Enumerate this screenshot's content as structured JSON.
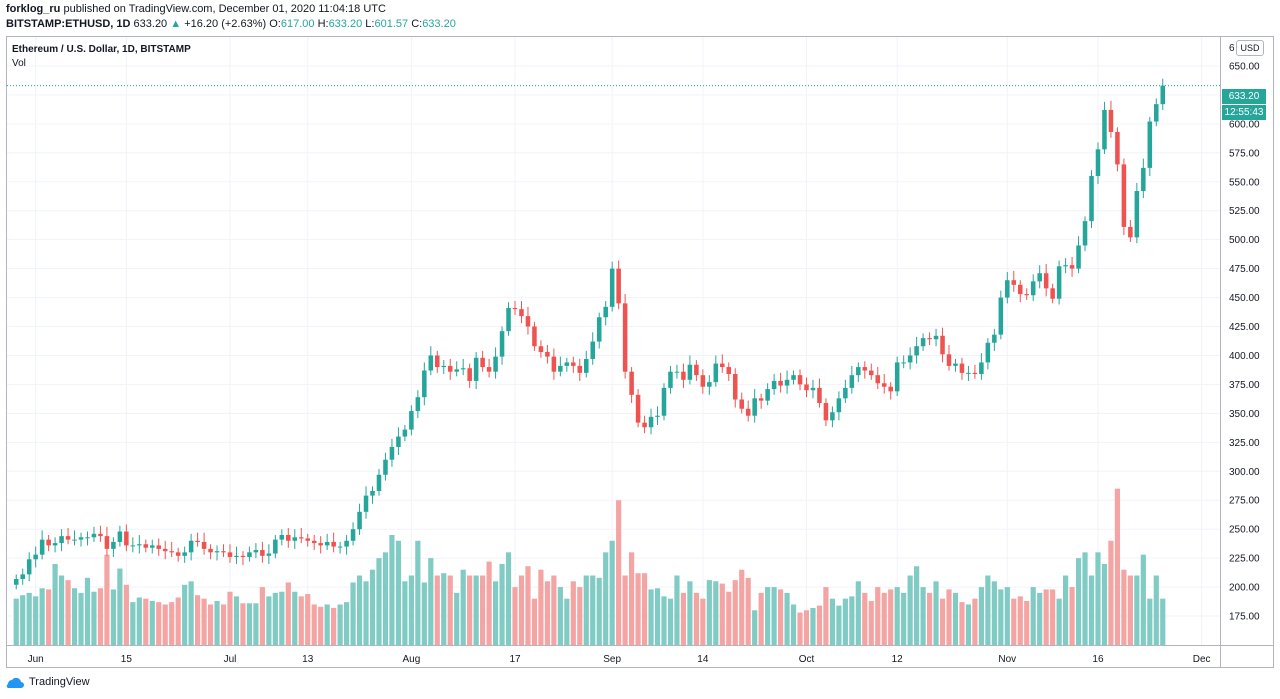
{
  "header": {
    "publisher": "forklog_ru",
    "published_text": "published on TradingView.com, December 01, 2020 11:04:18 UTC",
    "symbol_line": "BITSTAMP:ETHUSD, 1D",
    "last": "633.20",
    "change_arrow": "▲",
    "change": "+16.20 (+2.63%)",
    "o_label": "O:",
    "o_value": "617.00",
    "h_label": "H:",
    "h_value": "633.20",
    "l_label": "L:",
    "l_value": "601.57",
    "c_label": "C:",
    "c_value": "633.20"
  },
  "legend": {
    "title": "Ethereum / U.S. Dollar, 1D, BITSTAMP",
    "volume_label": "Vol"
  },
  "currency_button": "USD",
  "price_tag": "633.20",
  "countdown_tag": "12:55:43",
  "footer": {
    "brand": "TradingView"
  },
  "colors": {
    "up": "#26a69a",
    "down": "#ef5350",
    "up_vol": "#80cbc4",
    "down_vol": "#f4a4a2",
    "grid": "#f0f3fa"
  },
  "chart_data": {
    "type": "candlestick",
    "title": "Ethereum / U.S. Dollar, 1D, BITSTAMP",
    "yaxis": {
      "min": 150,
      "max": 675,
      "ticks": [
        175,
        200,
        225,
        250,
        275,
        300,
        325,
        350,
        375,
        400,
        425,
        450,
        475,
        500,
        525,
        550,
        575,
        600,
        625,
        650
      ],
      "top_partial_label": "6"
    },
    "xaxis_labels": [
      "Jun",
      "15",
      "Jul",
      "13",
      "Aug",
      "17",
      "Sep",
      "14",
      "Oct",
      "12",
      "Nov",
      "16",
      "Dec"
    ],
    "xaxis_label_index": [
      3,
      17,
      33,
      45,
      61,
      77,
      92,
      106,
      122,
      136,
      153,
      167,
      183
    ],
    "close": [
      207,
      211,
      224,
      228,
      241,
      236,
      238,
      244,
      241,
      241,
      243,
      243,
      246,
      244,
      233,
      239,
      248,
      236,
      236,
      237,
      234,
      236,
      233,
      231,
      230,
      227,
      230,
      240,
      239,
      233,
      230,
      231,
      230,
      226,
      227,
      226,
      230,
      232,
      227,
      229,
      241,
      245,
      240,
      243,
      242,
      240,
      238,
      236,
      239,
      235,
      235,
      240,
      250,
      265,
      279,
      283,
      297,
      310,
      321,
      330,
      336,
      352,
      364,
      387,
      400,
      390,
      391,
      386,
      388,
      389,
      378,
      398,
      390,
      386,
      399,
      421,
      441,
      440,
      434,
      425,
      408,
      403,
      399,
      386,
      391,
      394,
      391,
      385,
      397,
      412,
      433,
      442,
      475,
      445,
      386,
      366,
      342,
      338,
      347,
      348,
      372,
      386,
      386,
      379,
      392,
      383,
      373,
      377,
      393,
      390,
      384,
      362,
      354,
      348,
      363,
      361,
      371,
      378,
      374,
      379,
      383,
      375,
      370,
      372,
      359,
      344,
      351,
      363,
      372,
      383,
      390,
      387,
      383,
      376,
      373,
      369,
      394,
      394,
      400,
      408,
      415,
      414,
      417,
      401,
      391,
      393,
      385,
      385,
      384,
      394,
      411,
      418,
      450,
      465,
      461,
      453,
      452,
      464,
      471,
      458,
      449,
      477,
      478,
      475,
      495,
      516,
      555,
      578,
      612,
      593,
      565,
      511,
      502,
      542,
      562,
      602,
      617,
      633
    ],
    "open": [
      202,
      207,
      211,
      224,
      228,
      241,
      236,
      238,
      244,
      241,
      241,
      243,
      243,
      246,
      244,
      233,
      239,
      248,
      236,
      236,
      237,
      234,
      236,
      233,
      231,
      230,
      227,
      230,
      240,
      239,
      233,
      230,
      231,
      230,
      226,
      227,
      226,
      230,
      232,
      227,
      229,
      241,
      245,
      240,
      243,
      242,
      240,
      238,
      236,
      239,
      235,
      235,
      240,
      250,
      265,
      279,
      283,
      297,
      310,
      321,
      330,
      336,
      352,
      364,
      387,
      400,
      390,
      391,
      386,
      388,
      389,
      378,
      398,
      390,
      386,
      399,
      421,
      441,
      440,
      434,
      425,
      408,
      403,
      399,
      386,
      391,
      394,
      391,
      385,
      397,
      412,
      433,
      442,
      475,
      445,
      386,
      366,
      342,
      338,
      347,
      348,
      372,
      386,
      386,
      379,
      392,
      383,
      373,
      377,
      393,
      390,
      384,
      362,
      354,
      348,
      363,
      361,
      371,
      378,
      374,
      379,
      383,
      375,
      370,
      372,
      359,
      344,
      351,
      363,
      372,
      383,
      390,
      387,
      383,
      376,
      373,
      369,
      394,
      394,
      400,
      408,
      415,
      414,
      417,
      401,
      391,
      393,
      385,
      385,
      384,
      394,
      411,
      418,
      450,
      465,
      461,
      453,
      452,
      464,
      471,
      458,
      449,
      477,
      478,
      475,
      495,
      516,
      555,
      578,
      612,
      593,
      565,
      511,
      502,
      542,
      562,
      602,
      617
    ],
    "volume": [
      190,
      193,
      195,
      192,
      199,
      198,
      220,
      210,
      206,
      199,
      195,
      208,
      196,
      199,
      228,
      198,
      216,
      202,
      187,
      191,
      190,
      188,
      187,
      185,
      187,
      191,
      202,
      205,
      193,
      190,
      185,
      188,
      185,
      196,
      192,
      186,
      186,
      186,
      200,
      192,
      195,
      196,
      204,
      196,
      192,
      194,
      185,
      183,
      185,
      182,
      185,
      187,
      204,
      210,
      205,
      215,
      225,
      230,
      245,
      240,
      205,
      210,
      240,
      204,
      225,
      210,
      212,
      210,
      195,
      215,
      210,
      210,
      210,
      222,
      205,
      220,
      230,
      200,
      210,
      218,
      190,
      215,
      205,
      210,
      200,
      190,
      205,
      200,
      210,
      210,
      208,
      230,
      240,
      275,
      210,
      230,
      212,
      212,
      198,
      199,
      192,
      190,
      210,
      195,
      205,
      195,
      190,
      206,
      205,
      203,
      196,
      206,
      215,
      208,
      180,
      195,
      200,
      200,
      198,
      195,
      185,
      178,
      180,
      182,
      184,
      200,
      190,
      184,
      190,
      192,
      205,
      195,
      188,
      200,
      195,
      198,
      200,
      195,
      210,
      218,
      200,
      195,
      205,
      190,
      198,
      195,
      187,
      185,
      190,
      200,
      210,
      205,
      198,
      200,
      190,
      192,
      188,
      200,
      195,
      198,
      198,
      190,
      210,
      200,
      225,
      230,
      210,
      230,
      220,
      240,
      285,
      215,
      210,
      210,
      228,
      190,
      210,
      190
    ]
  }
}
